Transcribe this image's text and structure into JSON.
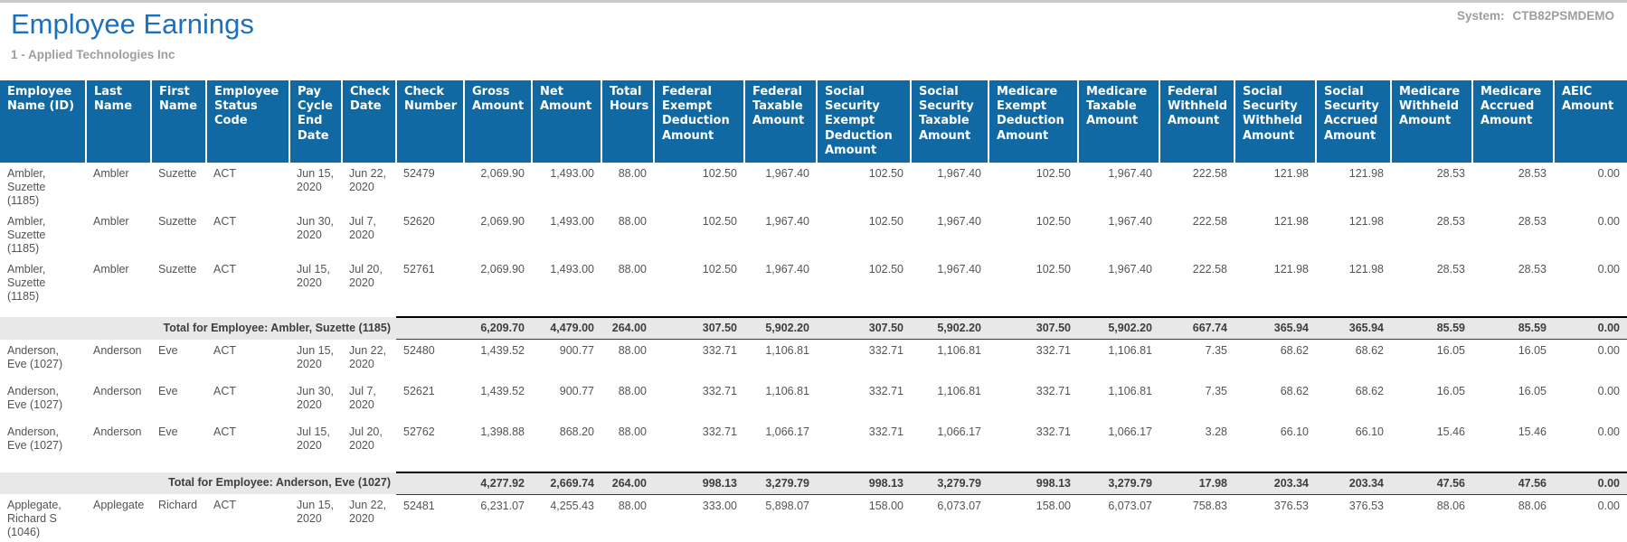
{
  "page": {
    "title": "Employee Earnings",
    "subtitle": "1 - Applied Technologies Inc",
    "system_label": "System:",
    "system_value": "CTB82PSMDEMO"
  },
  "colors": {
    "title": "#1C70BE",
    "header_bg": "#1169A4",
    "header_text": "#FFFFFF",
    "body_text": "#545454",
    "muted_text": "#9E9E9E",
    "total_bg": "#E8E8E8",
    "total_text": "#3E3E3E",
    "top_rule": "#C9C9C9",
    "total_rule": "#000000"
  },
  "table": {
    "columns": [
      "Employee Name (ID)",
      "Last Name",
      "First Name",
      "Employee Status Code",
      "Pay Cycle End Date",
      "Check Date",
      "Check Number",
      "Gross Amount",
      "Net Amount",
      "Total Hours",
      "Federal Exempt Deduction Amount",
      "Federal Taxable Amount",
      "Social Security Exempt Deduction Amount",
      "Social Security Taxable Amount",
      "Medicare Exempt Deduction Amount",
      "Medicare Taxable Amount",
      "Federal Withheld Amount",
      "Social Security Withheld Amount",
      "Social Security Accrued Amount",
      "Medicare Withheld Amount",
      "Medicare Accrued Amount",
      "AEIC Amount"
    ],
    "rows": [
      {
        "type": "data",
        "cells": [
          "Ambler, Suzette (1185)",
          "Ambler",
          "Suzette",
          "ACT",
          "Jun 15, 2020",
          "Jun 22, 2020",
          "52479",
          "2,069.90",
          "1,493.00",
          "88.00",
          "102.50",
          "1,967.40",
          "102.50",
          "1,967.40",
          "102.50",
          "1,967.40",
          "222.58",
          "121.98",
          "121.98",
          "28.53",
          "28.53",
          "0.00"
        ]
      },
      {
        "type": "data",
        "cells": [
          "Ambler, Suzette (1185)",
          "Ambler",
          "Suzette",
          "ACT",
          "Jun 30, 2020",
          "Jul 7, 2020",
          "52620",
          "2,069.90",
          "1,493.00",
          "88.00",
          "102.50",
          "1,967.40",
          "102.50",
          "1,967.40",
          "102.50",
          "1,967.40",
          "222.58",
          "121.98",
          "121.98",
          "28.53",
          "28.53",
          "0.00"
        ]
      },
      {
        "type": "data",
        "cells": [
          "Ambler, Suzette (1185)",
          "Ambler",
          "Suzette",
          "ACT",
          "Jul 15, 2020",
          "Jul 20, 2020",
          "52761",
          "2,069.90",
          "1,493.00",
          "88.00",
          "102.50",
          "1,967.40",
          "102.50",
          "1,967.40",
          "102.50",
          "1,967.40",
          "222.58",
          "121.98",
          "121.98",
          "28.53",
          "28.53",
          "0.00"
        ]
      },
      {
        "type": "total",
        "label": "Total for Employee: Ambler, Suzette (1185)",
        "values": [
          "6,209.70",
          "4,479.00",
          "264.00",
          "307.50",
          "5,902.20",
          "307.50",
          "5,902.20",
          "307.50",
          "5,902.20",
          "667.74",
          "365.94",
          "365.94",
          "85.59",
          "85.59",
          "0.00"
        ]
      },
      {
        "type": "data",
        "cells": [
          "Anderson, Eve (1027)",
          "Anderson",
          "Eve",
          "ACT",
          "Jun 15, 2020",
          "Jun 22, 2020",
          "52480",
          "1,439.52",
          "900.77",
          "88.00",
          "332.71",
          "1,106.81",
          "332.71",
          "1,106.81",
          "332.71",
          "1,106.81",
          "7.35",
          "68.62",
          "68.62",
          "16.05",
          "16.05",
          "0.00"
        ]
      },
      {
        "type": "data",
        "cells": [
          "Anderson, Eve (1027)",
          "Anderson",
          "Eve",
          "ACT",
          "Jun 30, 2020",
          "Jul 7, 2020",
          "52621",
          "1,439.52",
          "900.77",
          "88.00",
          "332.71",
          "1,106.81",
          "332.71",
          "1,106.81",
          "332.71",
          "1,106.81",
          "7.35",
          "68.62",
          "68.62",
          "16.05",
          "16.05",
          "0.00"
        ]
      },
      {
        "type": "data",
        "cells": [
          "Anderson, Eve (1027)",
          "Anderson",
          "Eve",
          "ACT",
          "Jul 15, 2020",
          "Jul 20, 2020",
          "52762",
          "1,398.88",
          "868.20",
          "88.00",
          "332.71",
          "1,066.17",
          "332.71",
          "1,066.17",
          "332.71",
          "1,066.17",
          "3.28",
          "66.10",
          "66.10",
          "15.46",
          "15.46",
          "0.00"
        ]
      },
      {
        "type": "total",
        "label": "Total for Employee: Anderson, Eve (1027)",
        "values": [
          "4,277.92",
          "2,669.74",
          "264.00",
          "998.13",
          "3,279.79",
          "998.13",
          "3,279.79",
          "998.13",
          "3,279.79",
          "17.98",
          "203.34",
          "203.34",
          "47.56",
          "47.56",
          "0.00"
        ]
      },
      {
        "type": "data",
        "cells": [
          "Applegate, Richard S (1046)",
          "Applegate",
          "Richard",
          "ACT",
          "Jun 15, 2020",
          "Jun 22, 2020",
          "52481",
          "6,231.07",
          "4,255.43",
          "88.00",
          "333.00",
          "5,898.07",
          "158.00",
          "6,073.07",
          "158.00",
          "6,073.07",
          "758.83",
          "376.53",
          "376.53",
          "88.06",
          "88.06",
          "0.00"
        ]
      }
    ]
  }
}
